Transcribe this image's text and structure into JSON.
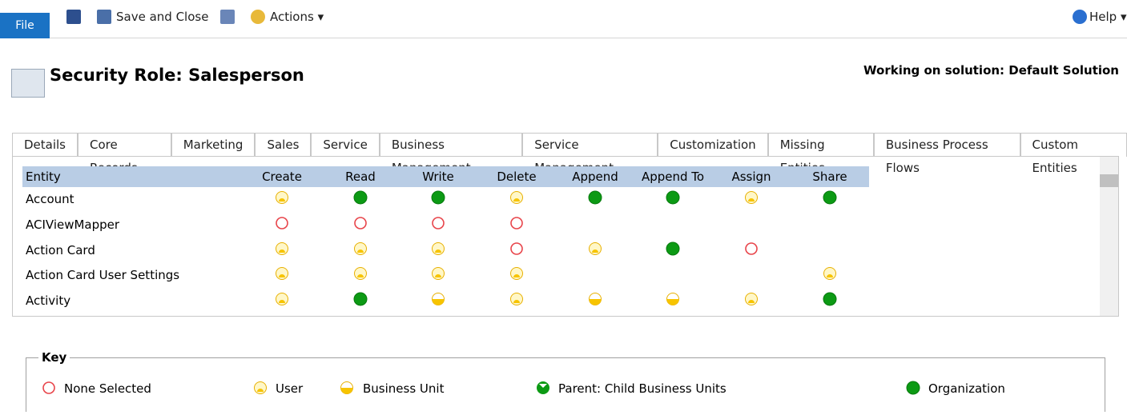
{
  "toolbar": {
    "file": "File",
    "save_close": "Save and Close",
    "actions": "Actions",
    "help": "Help"
  },
  "header": {
    "title": "Security Role: Salesperson",
    "solution": "Working on solution: Default Solution"
  },
  "tabs": [
    "Details",
    "Core Records",
    "Marketing",
    "Sales",
    "Service",
    "Business Management",
    "Service Management",
    "Customization",
    "Missing Entities",
    "Business Process Flows",
    "Custom Entities"
  ],
  "selected_tab": 1,
  "table": {
    "columns": [
      "Entity",
      "Create",
      "Read",
      "Write",
      "Delete",
      "Append",
      "Append To",
      "Assign",
      "Share"
    ],
    "rows": [
      {
        "entity": "Account",
        "levels": [
          "user",
          "org",
          "org",
          "user",
          "org",
          "org",
          "user",
          "org"
        ]
      },
      {
        "entity": "ACIViewMapper",
        "levels": [
          "none",
          "none",
          "none",
          "none",
          null,
          null,
          null,
          null
        ]
      },
      {
        "entity": "Action Card",
        "levels": [
          "user",
          "user",
          "user",
          "none",
          "user",
          "org",
          "none",
          null
        ]
      },
      {
        "entity": "Action Card User Settings",
        "levels": [
          "user",
          "user",
          "user",
          "user",
          null,
          null,
          null,
          "user"
        ]
      },
      {
        "entity": "Activity",
        "levels": [
          "user",
          "org",
          "bu",
          "user",
          "bu",
          "bu",
          "user",
          "org"
        ]
      }
    ]
  },
  "key": {
    "title": "Key",
    "items": [
      {
        "level": "none",
        "label": "None Selected"
      },
      {
        "level": "user",
        "label": "User"
      },
      {
        "level": "bu",
        "label": "Business Unit"
      },
      {
        "level": "parent",
        "label": "Parent: Child Business Units"
      },
      {
        "level": "org",
        "label": "Organization"
      }
    ]
  }
}
